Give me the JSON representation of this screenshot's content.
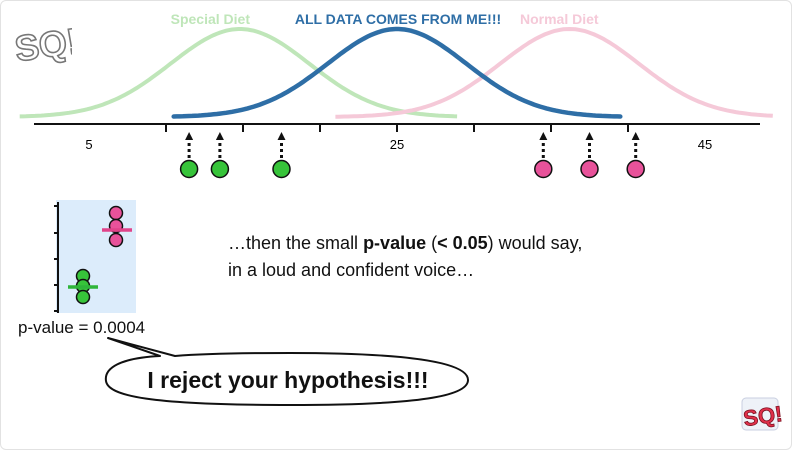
{
  "colors": {
    "special": "#bfe6b9",
    "normal": "#f5c9d8",
    "all_data": "#2e6ea6",
    "axis": "#111111",
    "green_point": "#37c43a",
    "pink_point": "#e8529a",
    "green_mean": "#2fb53a",
    "pink_mean": "#e0438a",
    "plot_bg": "#dcecfb"
  },
  "header": {
    "special_diet": "Special Diet",
    "all_data": "ALL DATA COMES FROM ME!!!",
    "normal_diet": "Normal Diet"
  },
  "axis": {
    "tick_labels": [
      "5",
      "25",
      "45"
    ]
  },
  "points": {
    "green_values": [
      11.5,
      13.5,
      17.5
    ],
    "pink_values": [
      34.5,
      37.5,
      40.5
    ]
  },
  "distributions": {
    "special_mean": 14.8,
    "special_sd": 4.5,
    "all_mean": 25,
    "all_sd": 4.5,
    "normal_mean": 36.2,
    "normal_sd": 4.5
  },
  "inset": {
    "p_value_text": "p-value = 0.0004"
  },
  "caption": {
    "part1": "…then the small ",
    "bold1": "p-value",
    "part2": " (",
    "bold2": "< 0.05",
    "part3": ") would say, in a loud and confident voice…"
  },
  "bubble": {
    "text": "I reject your hypothesis!!!"
  },
  "logo": {
    "text": "SQ!"
  }
}
